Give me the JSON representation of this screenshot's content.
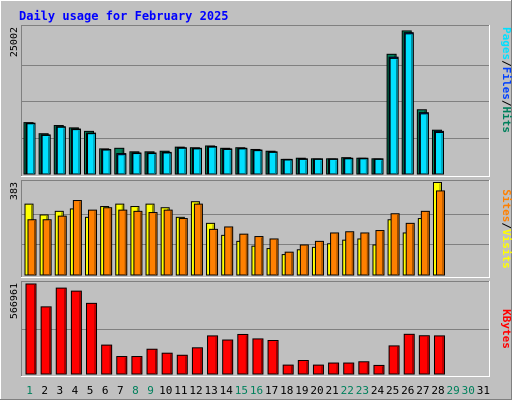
{
  "title": "Daily usage for February 2025",
  "colors": {
    "background": "#c0c0c0",
    "frame_light": "#ffffff",
    "frame_dark": "#808080",
    "grid": "#808080",
    "title": "#0000ff",
    "day_label": "#000000",
    "weekend_label": "#00805c",
    "hits": "#00805c",
    "files": "#0040ff",
    "pages": "#00e0ff",
    "visits": "#ffff00",
    "sites": "#ff8000",
    "kbytes": "#ff0000",
    "separator": "#000000"
  },
  "legend": {
    "pages": "Pages",
    "files": "Files",
    "hits": "Hits",
    "sites": "Sites",
    "visits": "Visits",
    "kbytes": "KBytes",
    "separator": "/"
  },
  "chart_data": {
    "type": "bar",
    "days": [
      "1",
      "2",
      "3",
      "4",
      "5",
      "6",
      "7",
      "8",
      "9",
      "10",
      "11",
      "12",
      "13",
      "14",
      "15",
      "16",
      "17",
      "18",
      "19",
      "20",
      "21",
      "22",
      "23",
      "24",
      "25",
      "26",
      "27",
      "28",
      "29",
      "30",
      "31"
    ],
    "weekend_days": [
      1,
      8,
      9,
      15,
      16,
      22,
      23,
      29,
      30
    ],
    "panels": [
      {
        "name": "hits-files-pages",
        "ymax_label": "25002",
        "ymax": 25002,
        "gridlines": [
          0.25,
          0.5,
          0.75
        ],
        "series": [
          {
            "name": "Hits",
            "color_key": "hits",
            "values": [
              8800,
              6900,
              8300,
              7900,
              7300,
              4300,
              4400,
              3800,
              3800,
              3900,
              4600,
              4500,
              4800,
              4400,
              4500,
              4200,
              3900,
              2500,
              2700,
              2600,
              2600,
              2800,
              2700,
              2600,
              20500,
              24500,
              11000,
              7500,
              null,
              null,
              null
            ]
          },
          {
            "name": "Files",
            "color_key": "files",
            "values": [
              8700,
              6700,
              8100,
              7700,
              7000,
              4200,
              3500,
              3600,
              3600,
              3700,
              4500,
              4400,
              4700,
              4300,
              4400,
              4100,
              3800,
              2500,
              2600,
              2600,
              2600,
              2700,
              2700,
              2600,
              20000,
              24200,
              10500,
              7300,
              null,
              null,
              null
            ]
          },
          {
            "name": "Pages",
            "color_key": "pages",
            "values": [
              8600,
              6600,
              8000,
              7600,
              6900,
              4100,
              3300,
              3500,
              3500,
              3600,
              4400,
              4300,
              4600,
              4200,
              4300,
              4000,
              3700,
              2400,
              2500,
              2500,
              2500,
              2600,
              2600,
              2500,
              19800,
              24000,
              10300,
              7100,
              null,
              null,
              null
            ]
          }
        ]
      },
      {
        "name": "visits-sites",
        "ymax_label": "383",
        "ymax": 383,
        "gridlines": [
          0.333,
          0.667
        ],
        "series": [
          {
            "name": "Visits",
            "color_key": "visits",
            "values": [
              295,
              250,
              265,
              275,
              240,
              285,
              295,
              285,
              295,
              280,
              240,
              305,
              215,
              165,
              140,
              120,
              110,
              85,
              105,
              115,
              130,
              145,
              150,
              125,
              230,
              175,
              235,
              385,
              null,
              null,
              null
            ]
          },
          {
            "name": "Sites",
            "color_key": "sites",
            "values": [
              230,
              230,
              245,
              310,
              270,
              280,
              270,
              265,
              260,
              270,
              235,
              295,
              190,
              200,
              170,
              160,
              150,
              95,
              125,
              140,
              175,
              180,
              175,
              185,
              255,
              215,
              265,
              350,
              null,
              null,
              null
            ]
          }
        ]
      },
      {
        "name": "kbytes",
        "ymax_label": "566961",
        "ymax": 566961,
        "gridlines": [
          0.5
        ],
        "series": [
          {
            "name": "KBytes",
            "color_key": "kbytes",
            "values": [
              567000,
              423000,
              541000,
              522000,
              445000,
              182000,
              110000,
              110000,
              156000,
              131000,
              118000,
              165000,
              240000,
              214000,
              249000,
              221000,
              211000,
              56000,
              85000,
              56000,
              69000,
              69000,
              77000,
              54000,
              177000,
              250000,
              241000,
              240000,
              null,
              null,
              null
            ]
          }
        ]
      }
    ]
  }
}
